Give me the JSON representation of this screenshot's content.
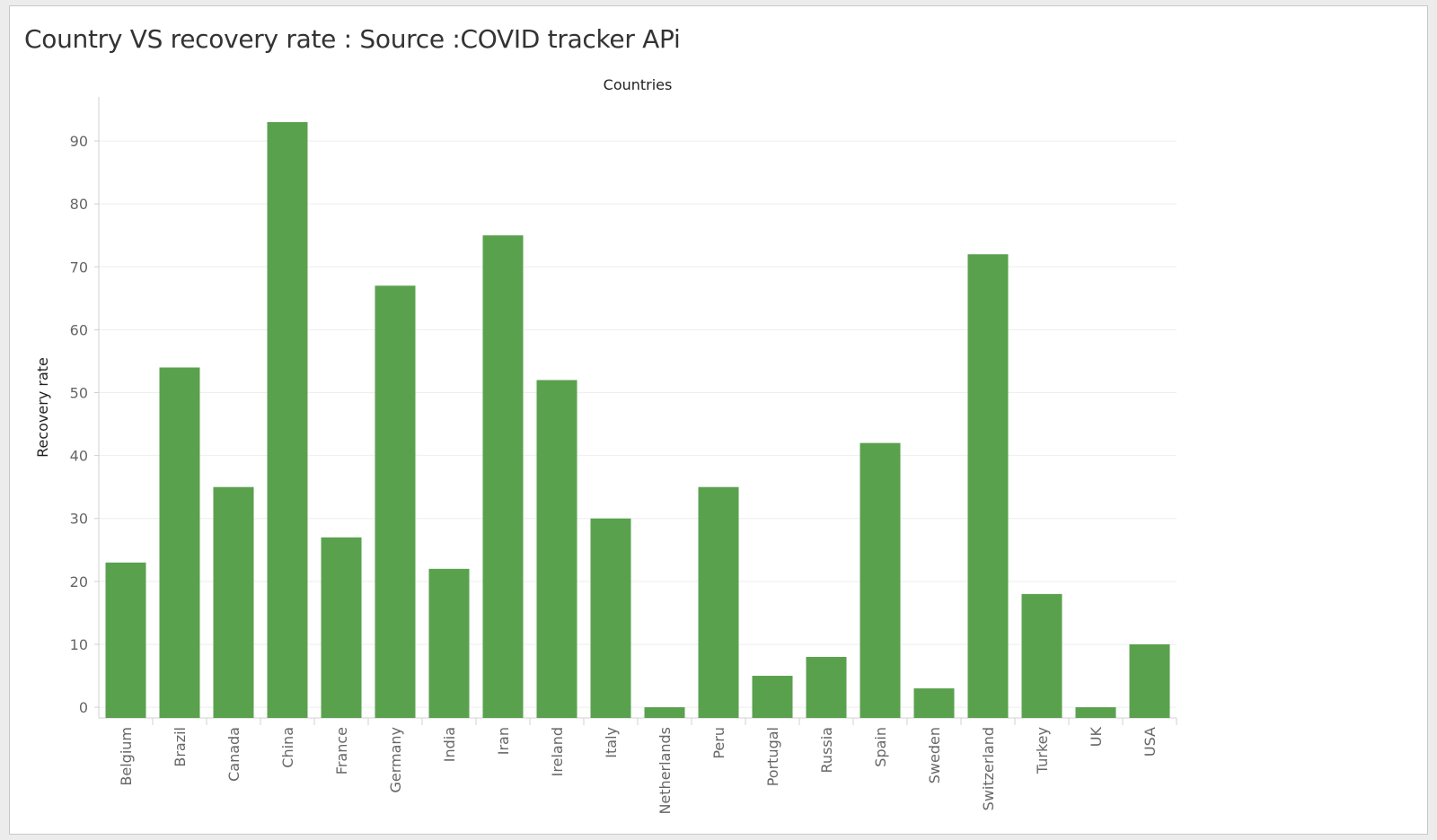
{
  "page": {
    "title": "Country VS recovery rate : Source :COVID tracker APi"
  },
  "colors": {
    "bar": "#5aa14e",
    "grid": "#eeeeee",
    "axis": "#d0d0d0",
    "background": "#ffffff"
  },
  "chart_data": {
    "type": "bar",
    "title": "Country VS recovery rate : Source :COVID tracker APi",
    "xlabel": "Countries",
    "ylabel": "Recovery rate",
    "xlabel_position": "top",
    "ylim": [
      -1.7,
      97
    ],
    "yticks": [
      0,
      10,
      20,
      30,
      40,
      50,
      60,
      70,
      80,
      90
    ],
    "grid": true,
    "categories": [
      "Belgium",
      "Brazil",
      "Canada",
      "China",
      "France",
      "Germany",
      "India",
      "Iran",
      "Ireland",
      "Italy",
      "Netherlands",
      "Peru",
      "Portugal",
      "Russia",
      "Spain",
      "Sweden",
      "Switzerland",
      "Turkey",
      "UK",
      "USA"
    ],
    "values": [
      23,
      54,
      35,
      93,
      27,
      67,
      22,
      75,
      52,
      30,
      0,
      35,
      5,
      8,
      42,
      3,
      72,
      18,
      0,
      10
    ]
  }
}
